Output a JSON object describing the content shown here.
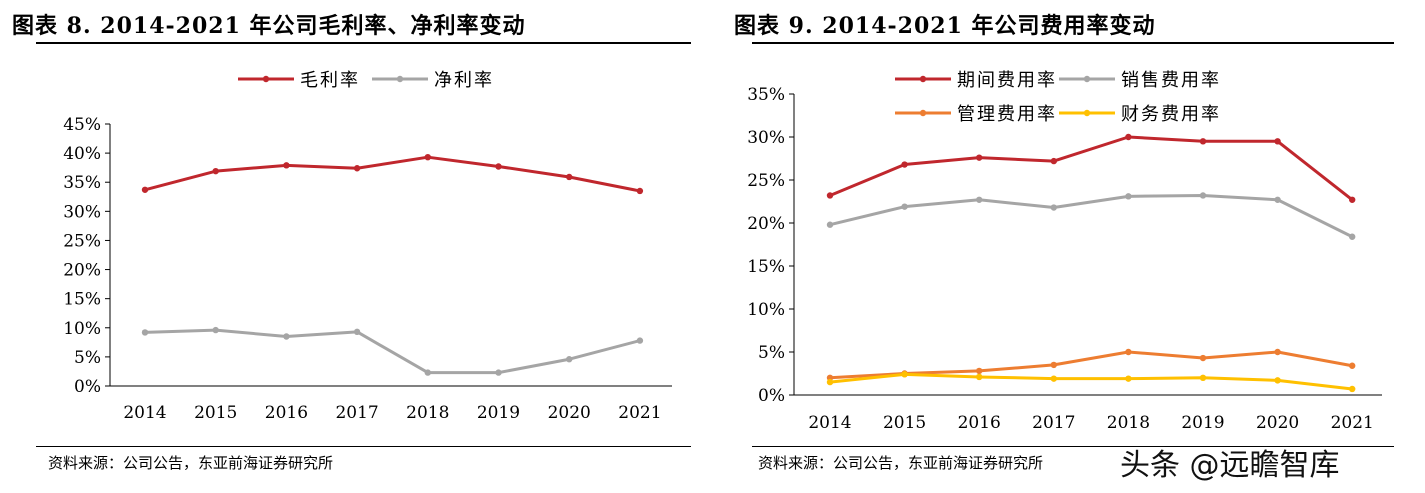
{
  "left_panel": {
    "title": "图表 8.   2014-2021 年公司毛利率、净利率变动",
    "source": "资料来源：公司公告，东亚前海证券研究所"
  },
  "right_panel": {
    "title": "图表 9.   2014-2021 年公司费用率变动",
    "source": "资料来源：公司公告，东亚前海证券研究所"
  },
  "watermark": "头条 @远瞻智库",
  "chart_data": [
    {
      "type": "line",
      "categories": [
        "2014",
        "2015",
        "2016",
        "2017",
        "2018",
        "2019",
        "2020",
        "2021"
      ],
      "ylim": [
        0,
        45
      ],
      "yticks": [
        "0%",
        "5%",
        "10%",
        "15%",
        "20%",
        "25%",
        "30%",
        "35%",
        "40%",
        "45%"
      ],
      "grid": false,
      "legend_position": "top",
      "series": [
        {
          "name": "毛利率",
          "color": "#C0272D",
          "values": [
            33.7,
            36.9,
            37.9,
            37.4,
            39.3,
            37.7,
            35.9,
            33.5
          ]
        },
        {
          "name": "净利率",
          "color": "#A5A5A5",
          "values": [
            9.2,
            9.6,
            8.5,
            9.3,
            2.3,
            2.3,
            4.6,
            7.8
          ]
        }
      ]
    },
    {
      "type": "line",
      "categories": [
        "2014",
        "2015",
        "2016",
        "2017",
        "2018",
        "2019",
        "2020",
        "2021"
      ],
      "ylim": [
        0,
        35
      ],
      "yticks": [
        "0%",
        "5%",
        "10%",
        "15%",
        "20%",
        "25%",
        "30%",
        "35%"
      ],
      "grid": false,
      "legend_position": "top",
      "series": [
        {
          "name": "期间费用率",
          "color": "#C0272D",
          "values": [
            23.2,
            26.8,
            27.6,
            27.2,
            30.0,
            29.5,
            29.5,
            22.7
          ]
        },
        {
          "name": "销售费用率",
          "color": "#A5A5A5",
          "values": [
            19.8,
            21.9,
            22.7,
            21.8,
            23.1,
            23.2,
            22.7,
            18.4
          ]
        },
        {
          "name": "管理费用率",
          "color": "#ED7D31",
          "values": [
            2.0,
            2.5,
            2.8,
            3.5,
            5.0,
            4.3,
            5.0,
            3.4
          ]
        },
        {
          "name": "财务费用率",
          "color": "#FFC000",
          "values": [
            1.5,
            2.4,
            2.1,
            1.9,
            1.9,
            2.0,
            1.7,
            0.7
          ]
        }
      ]
    }
  ]
}
